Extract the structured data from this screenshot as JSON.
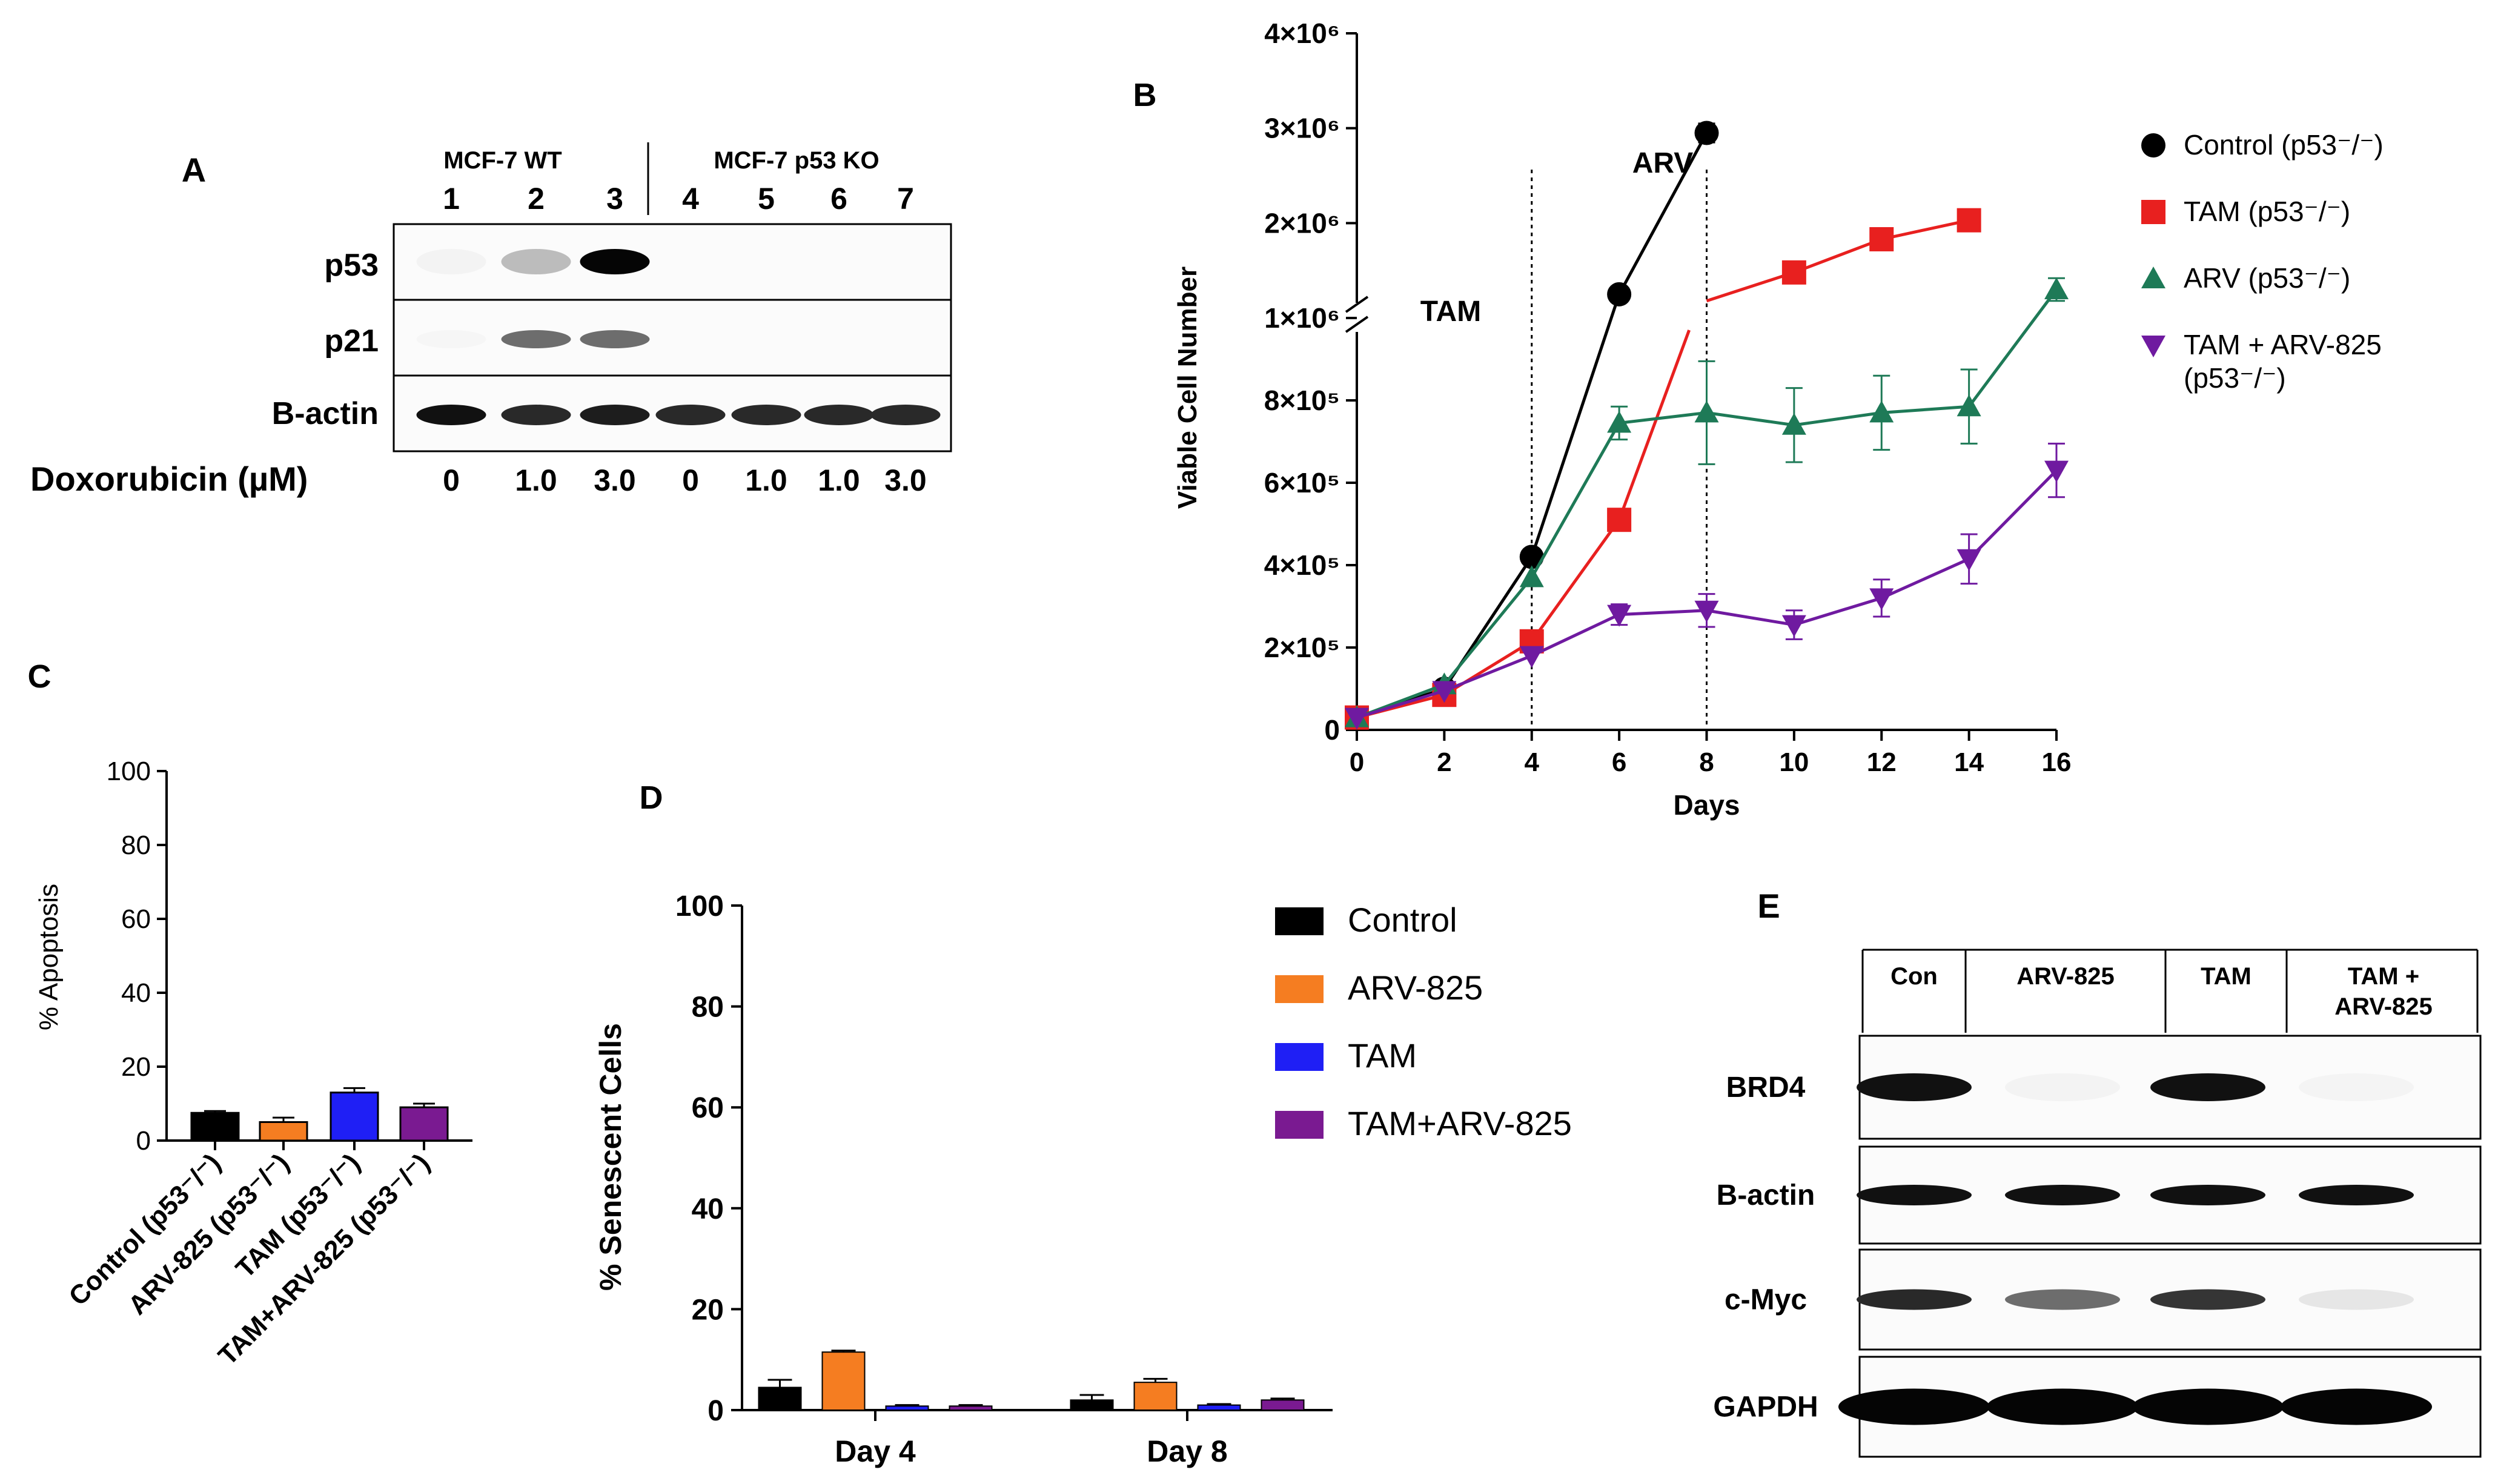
{
  "panels": {
    "A": {
      "letter": "A",
      "group_wt": "MCF-7 WT",
      "group_ko": "MCF-7 p53 KO",
      "lane_numbers": [
        "1",
        "2",
        "3",
        "4",
        "5",
        "6",
        "7"
      ],
      "rows": [
        {
          "label": "p53",
          "intensity": [
            0.05,
            0.35,
            1.0,
            0,
            0,
            0,
            0
          ]
        },
        {
          "label": "p21",
          "intensity": [
            0.03,
            0.6,
            0.6,
            0,
            0,
            0,
            0
          ]
        },
        {
          "label": "Β-actin",
          "intensity": [
            0.95,
            0.85,
            0.9,
            0.85,
            0.85,
            0.85,
            0.85
          ]
        }
      ],
      "treatment_label": "Doxorubicin (µM)",
      "doses": [
        "0",
        "1.0",
        "3.0",
        "0",
        "1.0",
        "1.0",
        "3.0"
      ]
    },
    "B": {
      "letter": "B"
    },
    "C": {
      "letter": "C"
    },
    "D": {
      "letter": "D"
    },
    "E": {
      "letter": "E",
      "header": [
        "Con",
        "ARV-825",
        "TAM",
        "TAM +\nARV-825"
      ],
      "rows": [
        {
          "label": "BRD4",
          "intensity": [
            0.95,
            0.06,
            0.95,
            0.04
          ]
        },
        {
          "label": "B-actin",
          "intensity": [
            0.95,
            0.95,
            0.95,
            0.95
          ]
        },
        {
          "label": "c-Myc",
          "intensity": [
            0.85,
            0.6,
            0.8,
            0.15
          ]
        },
        {
          "label": "GAPDH",
          "intensity": [
            1.0,
            1.0,
            1.0,
            1.0
          ]
        }
      ]
    }
  },
  "chart_data": [
    {
      "id": "B",
      "type": "line",
      "ylabel": "Viable Cell Number",
      "xlabel": "Days",
      "x_ticks": [
        0,
        2,
        4,
        6,
        8,
        10,
        12,
        14,
        16
      ],
      "xlim": [
        0,
        16
      ],
      "y_axis_break": true,
      "y_ticks_lower": [
        "0",
        "2×10⁵",
        "4×10⁵",
        "6×10⁵",
        "8×10⁵"
      ],
      "y_ticks_upper": [
        "1×10⁶",
        "2×10⁶",
        "3×10⁶",
        "4×10⁶"
      ],
      "y_tick_values_lower": [
        0,
        200000,
        400000,
        600000,
        800000
      ],
      "y_tick_values_upper": [
        1000000,
        2000000,
        3000000,
        4000000
      ],
      "annotations": [
        {
          "text": "TAM",
          "x": 4
        },
        {
          "text": "ARV",
          "x": 8
        }
      ],
      "series": [
        {
          "name": "Control (p53⁻/⁻)",
          "color": "#000000",
          "marker": "circle",
          "points": [
            [
              0,
              30000,
              0
            ],
            [
              2,
              100000,
              0
            ],
            [
              4,
              420000,
              0
            ],
            [
              6,
              1250000,
              0
            ],
            [
              8,
              2950000,
              100000
            ]
          ]
        },
        {
          "name": "TAM (p53⁻/⁻)",
          "color": "#e8201f",
          "marker": "square",
          "points": [
            [
              0,
              30000,
              0
            ],
            [
              2,
              85000,
              0
            ],
            [
              4,
              215000,
              0
            ],
            [
              6,
              510000,
              0
            ],
            [
              10,
              1480000,
              0
            ],
            [
              12,
              1830000,
              0
            ],
            [
              14,
              2030000,
              0
            ]
          ]
        },
        {
          "name": "ARV (p53⁻/⁻)",
          "color": "#1e7a57",
          "marker": "triangle-up",
          "points": [
            [
              0,
              30000,
              0
            ],
            [
              2,
              110000,
              0
            ],
            [
              4,
              370000,
              0
            ],
            [
              6,
              745000,
              40000
            ],
            [
              8,
              770000,
              125000
            ],
            [
              10,
              740000,
              90000
            ],
            [
              12,
              770000,
              90000
            ],
            [
              14,
              785000,
              90000
            ],
            [
              16,
              1300000,
              120000
            ]
          ]
        },
        {
          "name": "TAM + ARV-825",
          "name_line2": "(p53⁻/⁻)",
          "color": "#6f1aa0",
          "marker": "triangle-down",
          "points": [
            [
              0,
              30000,
              0
            ],
            [
              2,
              95000,
              0
            ],
            [
              4,
              180000,
              0
            ],
            [
              6,
              280000,
              25000
            ],
            [
              8,
              290000,
              40000
            ],
            [
              10,
              255000,
              35000
            ],
            [
              12,
              320000,
              45000
            ],
            [
              14,
              415000,
              60000
            ],
            [
              16,
              630000,
              65000
            ]
          ]
        }
      ]
    },
    {
      "id": "C",
      "type": "bar",
      "ylabel": "% Apoptosis",
      "ylim": [
        0,
        100
      ],
      "y_ticks": [
        0,
        20,
        40,
        60,
        80,
        100
      ],
      "categories": [
        "Control (p53⁻/⁻)",
        "ARV-825 (p53⁻/⁻)",
        "TAM (p53⁻/⁻)",
        "TAM+ARV-825 (p53⁻/⁻)"
      ],
      "values": [
        7.5,
        5,
        13,
        9
      ],
      "errors": [
        0.5,
        1.2,
        1.2,
        1.0
      ],
      "colors": [
        "#000000",
        "#f57d21",
        "#1f1ff5",
        "#7a1a91"
      ]
    },
    {
      "id": "D",
      "type": "bar",
      "ylabel": "% Senescent Cells",
      "ylim": [
        0,
        100
      ],
      "y_ticks": [
        0,
        20,
        40,
        60,
        80,
        100
      ],
      "categories": [
        "Day 4",
        "Day 8"
      ],
      "series": [
        {
          "name": "Control",
          "color": "#000000",
          "values": [
            4.5,
            2
          ],
          "errors": [
            1.5,
            1.0
          ]
        },
        {
          "name": "ARV-825",
          "color": "#f57d21",
          "values": [
            11.5,
            5.5
          ],
          "errors": [
            0.3,
            0.7
          ]
        },
        {
          "name": "TAM",
          "color": "#1f1ff5",
          "values": [
            0.8,
            1.0
          ],
          "errors": [
            0.2,
            0.2
          ]
        },
        {
          "name": "TAM+ARV-825",
          "color": "#7a1a91",
          "values": [
            0.8,
            2.0
          ],
          "errors": [
            0.2,
            0.3
          ]
        }
      ]
    }
  ]
}
